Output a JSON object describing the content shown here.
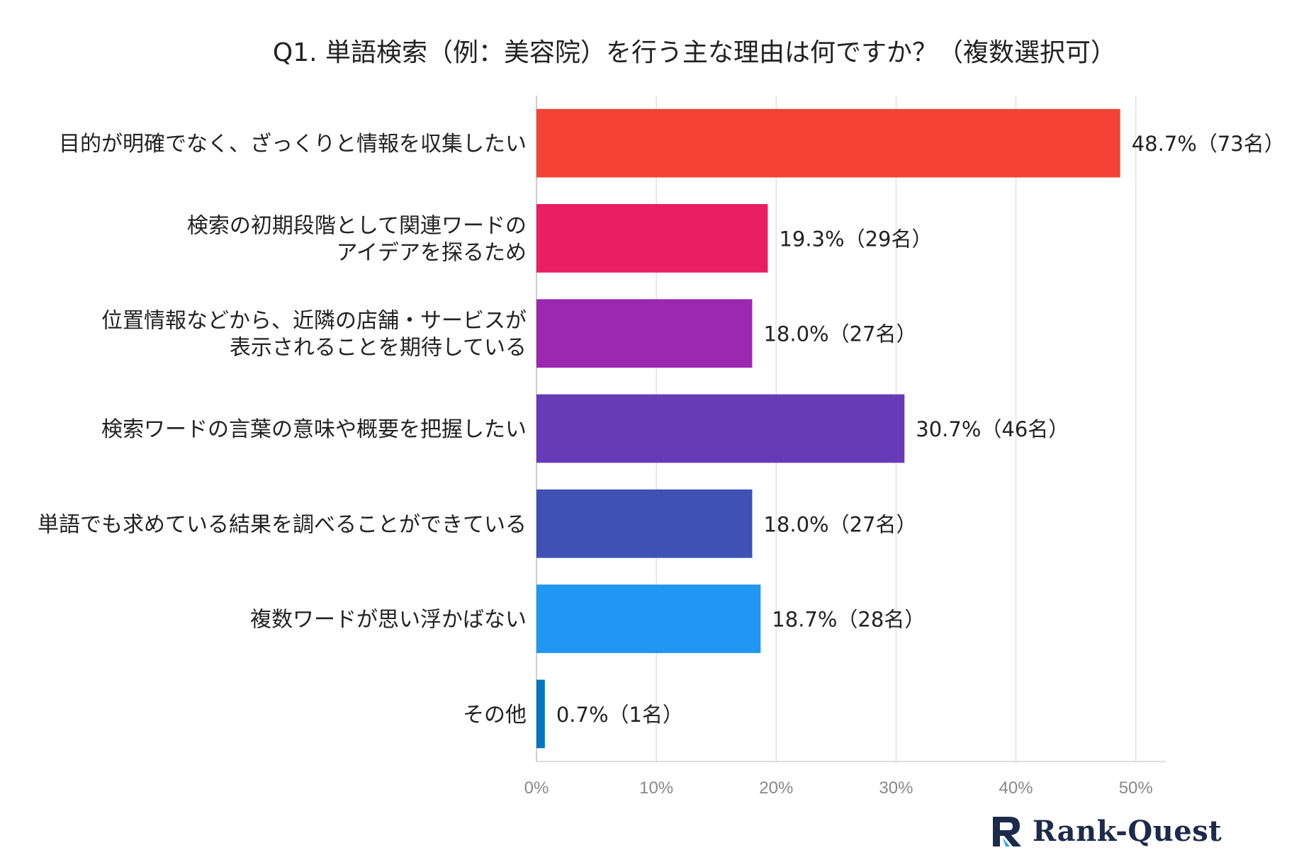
{
  "chart_data": {
    "type": "bar",
    "orientation": "horizontal",
    "title": "Q1. 単語検索（例：美容院）を行う主な理由は何ですか？（複数選択可）",
    "categories": [
      [
        "目的が明確でなく、ざっくりと情報を収集したい"
      ],
      [
        "検索の初期段階として関連ワードの",
        "アイデアを探るため"
      ],
      [
        "位置情報などから、近隣の店舗・サービスが",
        "表示されることを期待している"
      ],
      [
        "検索ワードの言葉の意味や概要を把握したい"
      ],
      [
        "単語でも求めている結果を調べることができている"
      ],
      [
        "複数ワードが思い浮かばない"
      ],
      [
        "その他"
      ]
    ],
    "values": [
      48.7,
      19.3,
      18.0,
      30.7,
      18.0,
      18.7,
      0.7
    ],
    "data_labels": [
      "48.7%（73名）",
      "19.3%（29名）",
      "18.0%（27名）",
      "30.7%（46名）",
      "18.0%（27名）",
      "18.7%（28名）",
      "0.7%（1名）"
    ],
    "colors": [
      "#f44336",
      "#e91e63",
      "#9c27b0",
      "#673ab7",
      "#3f51b5",
      "#2196f3",
      "#0277bd"
    ],
    "xlim": [
      0,
      52.5
    ],
    "xticks": [
      0,
      10,
      20,
      30,
      40,
      50
    ],
    "xtick_labels": [
      "0%",
      "10%",
      "20%",
      "30%",
      "40%",
      "50%"
    ],
    "grid": true,
    "legend": "none"
  },
  "branding": {
    "logo_text": "Rank-Quest",
    "logo_icon": "rank-quest-logo-icon",
    "logo_color": "#1c2b4a",
    "logo_accent": "#29a8e0"
  }
}
